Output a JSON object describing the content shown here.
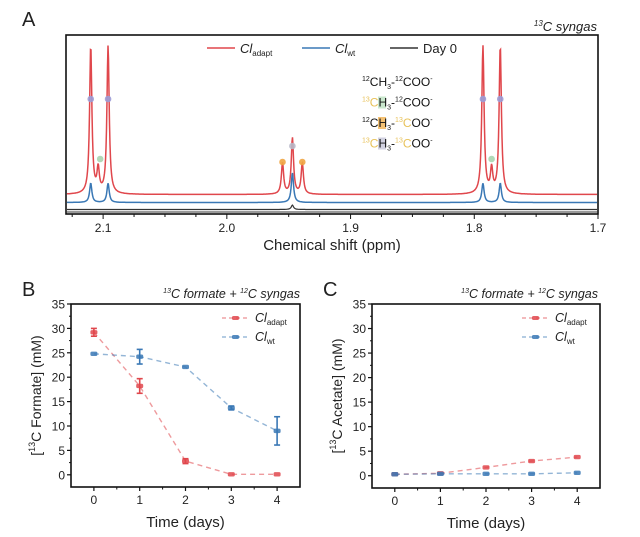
{
  "chart_data": [
    {
      "panel": "A",
      "type": "line",
      "title": "13C syngas",
      "title_sup": "13",
      "title_rest": "C syngas",
      "xlabel": "Chemical shift (ppm)",
      "ylabel": "",
      "xlim": [
        2.13,
        1.7
      ],
      "xticks": [
        2.1,
        2.0,
        1.9,
        1.8,
        1.7
      ],
      "xtick_labels": [
        "2.1",
        "2.0",
        "1.9",
        "1.8",
        "1.7"
      ],
      "legend": [
        {
          "name": "Cl",
          "sub": "adapt",
          "color": "#e0474c"
        },
        {
          "name": "Cl",
          "sub": "wt",
          "color": "#3a78b5"
        },
        {
          "name": "Day 0",
          "sub": "",
          "color": "#333333"
        }
      ],
      "legend_position": "top-center",
      "series": [
        {
          "name": "Cl_adapt",
          "color": "#e0474c",
          "peaks": [
            {
              "ppm": 2.11,
              "height": 1.0
            },
            {
              "ppm": 2.096,
              "height": 1.0
            },
            {
              "ppm": 2.104,
              "height": 0.16
            },
            {
              "ppm": 1.955,
              "height": 0.21
            },
            {
              "ppm": 1.947,
              "height": 0.38
            },
            {
              "ppm": 1.939,
              "height": 0.21
            },
            {
              "ppm": 1.793,
              "height": 1.0
            },
            {
              "ppm": 1.779,
              "height": 1.0
            },
            {
              "ppm": 1.786,
              "height": 0.16
            }
          ]
        },
        {
          "name": "Cl_wt",
          "color": "#3a78b5",
          "peaks": [
            {
              "ppm": 2.11,
              "height": 0.13
            },
            {
              "ppm": 2.096,
              "height": 0.13
            },
            {
              "ppm": 1.947,
              "height": 0.2
            },
            {
              "ppm": 1.793,
              "height": 0.13
            },
            {
              "ppm": 1.779,
              "height": 0.13
            }
          ]
        },
        {
          "name": "Day 0",
          "color": "#333333",
          "peaks": [
            {
              "ppm": 1.947,
              "height": 0.03
            }
          ]
        }
      ],
      "species_legend": [
        {
          "parts": [
            {
              "sup": "12",
              "text": "CH",
              "sub": "3",
              "rest": "-"
            },
            {
              "sup": "12",
              "text": "COO",
              "sup2": "-"
            }
          ],
          "dot_color": "#9b9bd6",
          "label": "12CH3-12COO-"
        },
        {
          "label": "13CH3-12COO-",
          "dot_color": "#a8d5b0"
        },
        {
          "label": "12CH3-13COO-",
          "dot_color": "#f0a542"
        },
        {
          "label": "13CH3-13COO-",
          "dot_color": "#b8b8c8"
        }
      ],
      "species_lines": [
        {
          "a_sup": "12",
          "a_sup_color": "#111111",
          "b_sup": "12",
          "b_sup_color": "#111111",
          "c_color": "#111111",
          "h_bg": "transparent"
        },
        {
          "a_sup": "13",
          "a_sup_color": "#e8c25a",
          "b_sup": "12",
          "b_sup_color": "#111111",
          "c_color": "#e8c25a",
          "h_bg": "#bfe3c4"
        },
        {
          "a_sup": "12",
          "a_sup_color": "#111111",
          "b_sup": "13",
          "b_sup_color": "#e8c25a",
          "c_color": "#111111",
          "h_bg": "#f2b65a"
        },
        {
          "a_sup": "13",
          "a_sup_color": "#e8c25a",
          "b_sup": "13",
          "b_sup_color": "#e8c25a",
          "c_color": "#e8c25a",
          "h_bg": "#c9c9da"
        }
      ],
      "markers": [
        {
          "ppm": 2.11,
          "level": "top",
          "color": "#9b9bd6"
        },
        {
          "ppm": 2.096,
          "level": "top",
          "color": "#9b9bd6"
        },
        {
          "ppm": 1.793,
          "level": "top",
          "color": "#9b9bd6"
        },
        {
          "ppm": 1.779,
          "level": "top",
          "color": "#9b9bd6"
        },
        {
          "ppm": 2.104,
          "level": "small",
          "color": "#a8d5b0"
        },
        {
          "ppm": 1.786,
          "level": "small",
          "color": "#a8d5b0"
        },
        {
          "ppm": 1.955,
          "level": "side",
          "color": "#f0a542"
        },
        {
          "ppm": 1.939,
          "level": "side",
          "color": "#f0a542"
        },
        {
          "ppm": 1.947,
          "level": "center",
          "color": "#b8b8c8"
        }
      ]
    },
    {
      "panel": "B",
      "type": "line",
      "title_sup1": "13",
      "title_mid": "C formate + ",
      "title_sup2": "12",
      "title_end": "C syngas",
      "xlabel": "Time (days)",
      "ylabel_pre": "[",
      "ylabel_sup": "13",
      "ylabel_rest": "C Formate] (mM)",
      "xlim": [
        -0.5,
        4.5
      ],
      "ylim": [
        -2.5,
        35
      ],
      "xticks": [
        0,
        1,
        2,
        3,
        4
      ],
      "yticks": [
        0,
        5,
        10,
        15,
        20,
        25,
        30,
        35
      ],
      "legend_position": "top-right",
      "series": [
        {
          "name": "Cl",
          "sub": "adapt",
          "color": "#e0474c",
          "x": [
            0,
            1,
            2,
            3,
            4
          ],
          "y": [
            29.2,
            18.2,
            2.8,
            0.1,
            0.1
          ],
          "err": [
            0.8,
            1.5,
            0.5,
            0.1,
            0.1
          ]
        },
        {
          "name": "Cl",
          "sub": "wt",
          "color": "#3a78b5",
          "x": [
            0,
            1,
            2,
            3,
            4
          ],
          "y": [
            24.8,
            24.2,
            22.1,
            13.7,
            9.0
          ],
          "err": [
            0.2,
            1.5,
            0.2,
            0.4,
            2.9
          ]
        }
      ]
    },
    {
      "panel": "C",
      "type": "line",
      "title_sup1": "13",
      "title_mid": "C formate + ",
      "title_sup2": "12",
      "title_end": "C syngas",
      "xlabel": "Time (days)",
      "ylabel_pre": "[",
      "ylabel_sup": "13",
      "ylabel_rest": "C Acetate] (mM)",
      "xlim": [
        -0.5,
        4.5
      ],
      "ylim": [
        -2.5,
        35
      ],
      "xticks": [
        0,
        1,
        2,
        3,
        4
      ],
      "yticks": [
        0,
        5,
        10,
        15,
        20,
        25,
        30,
        35
      ],
      "legend_position": "top-right",
      "series": [
        {
          "name": "Cl",
          "sub": "adapt",
          "color": "#e0474c",
          "x": [
            0,
            1,
            2,
            3,
            4
          ],
          "y": [
            0.3,
            0.5,
            1.7,
            3.0,
            3.8
          ],
          "err": [
            0.1,
            0.1,
            0.2,
            0.2,
            0.2
          ]
        },
        {
          "name": "Cl",
          "sub": "wt",
          "color": "#3a78b5",
          "x": [
            0,
            1,
            2,
            3,
            4
          ],
          "y": [
            0.3,
            0.4,
            0.4,
            0.4,
            0.6
          ],
          "err": [
            0.05,
            0.05,
            0.05,
            0.05,
            0.05
          ]
        }
      ]
    }
  ],
  "panel_labels": [
    "A",
    "B",
    "C"
  ]
}
